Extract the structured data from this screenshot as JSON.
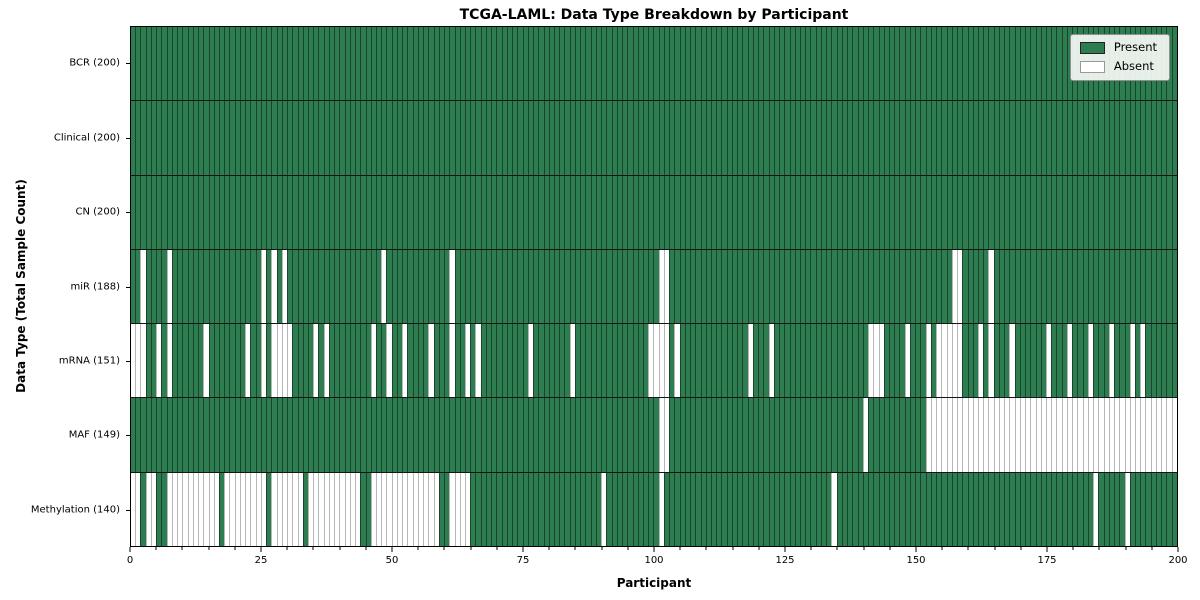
{
  "title": "TCGA-LAML: Data Type Breakdown by Participant",
  "xlabel": "Participant",
  "ylabel": "Data Type (Total Sample Count)",
  "legend": {
    "present_label": "Present",
    "absent_label": "Absent"
  },
  "chart_data": {
    "type": "heatmap",
    "x_axis_label": "Participant",
    "y_axis_label": "Data Type (Total Sample Count)",
    "n_participants": 200,
    "x_range": [
      0,
      200
    ],
    "x_major_ticks": [
      0,
      25,
      50,
      75,
      100,
      125,
      150,
      175,
      200
    ],
    "x_minor_tick_step": 5,
    "legend_position": "upper right",
    "colors": {
      "present": "#2e7d50",
      "absent": "#ffffff",
      "present_edge": "rgba(8,26,16,0.55)",
      "absent_edge": "#b7b7b7",
      "row_separator": "#141414",
      "legend_bg": "#fcfcfa",
      "legend_border": "#8f8f8f"
    },
    "rows": [
      {
        "label": "BCR (200)",
        "total": 200,
        "absent": []
      },
      {
        "label": "Clinical (200)",
        "total": 200,
        "absent": []
      },
      {
        "label": "CN (200)",
        "total": 200,
        "absent": []
      },
      {
        "label": "miR (188)",
        "total": 188,
        "absent": [
          2,
          7,
          25,
          27,
          29,
          48,
          61,
          101,
          102,
          157,
          158,
          164
        ]
      },
      {
        "label": "mRNA (151)",
        "total": 151,
        "absent": [
          0,
          1,
          2,
          5,
          7,
          14,
          22,
          25,
          27,
          28,
          29,
          30,
          35,
          37,
          46,
          49,
          52,
          57,
          61,
          64,
          66,
          76,
          84,
          99,
          100,
          101,
          102,
          104,
          118,
          122,
          141,
          142,
          143,
          148,
          152,
          154,
          155,
          156,
          157,
          158,
          162,
          164,
          168,
          175,
          179,
          183,
          187,
          191,
          193
        ]
      },
      {
        "label": "MAF (149)",
        "total": 149,
        "absent": [
          101,
          102,
          140,
          152,
          153,
          154,
          155,
          156,
          157,
          158,
          159,
          160,
          161,
          162,
          163,
          164,
          165,
          166,
          167,
          168,
          169,
          170,
          171,
          172,
          173,
          174,
          175,
          176,
          177,
          178,
          179,
          180,
          181,
          182,
          183,
          184,
          185,
          186,
          187,
          188,
          189,
          190,
          191,
          192,
          193,
          194,
          195,
          196,
          197,
          198,
          199
        ]
      },
      {
        "label": "Methylation (140)",
        "total": 140,
        "absent": [
          0,
          1,
          3,
          4,
          7,
          8,
          9,
          10,
          11,
          12,
          13,
          14,
          15,
          16,
          18,
          19,
          20,
          21,
          22,
          23,
          24,
          25,
          27,
          28,
          29,
          30,
          31,
          32,
          34,
          35,
          36,
          37,
          38,
          39,
          40,
          41,
          42,
          43,
          46,
          47,
          48,
          49,
          50,
          51,
          52,
          53,
          54,
          55,
          56,
          57,
          58,
          61,
          62,
          63,
          64,
          90,
          101,
          134,
          184,
          190
        ]
      }
    ]
  }
}
